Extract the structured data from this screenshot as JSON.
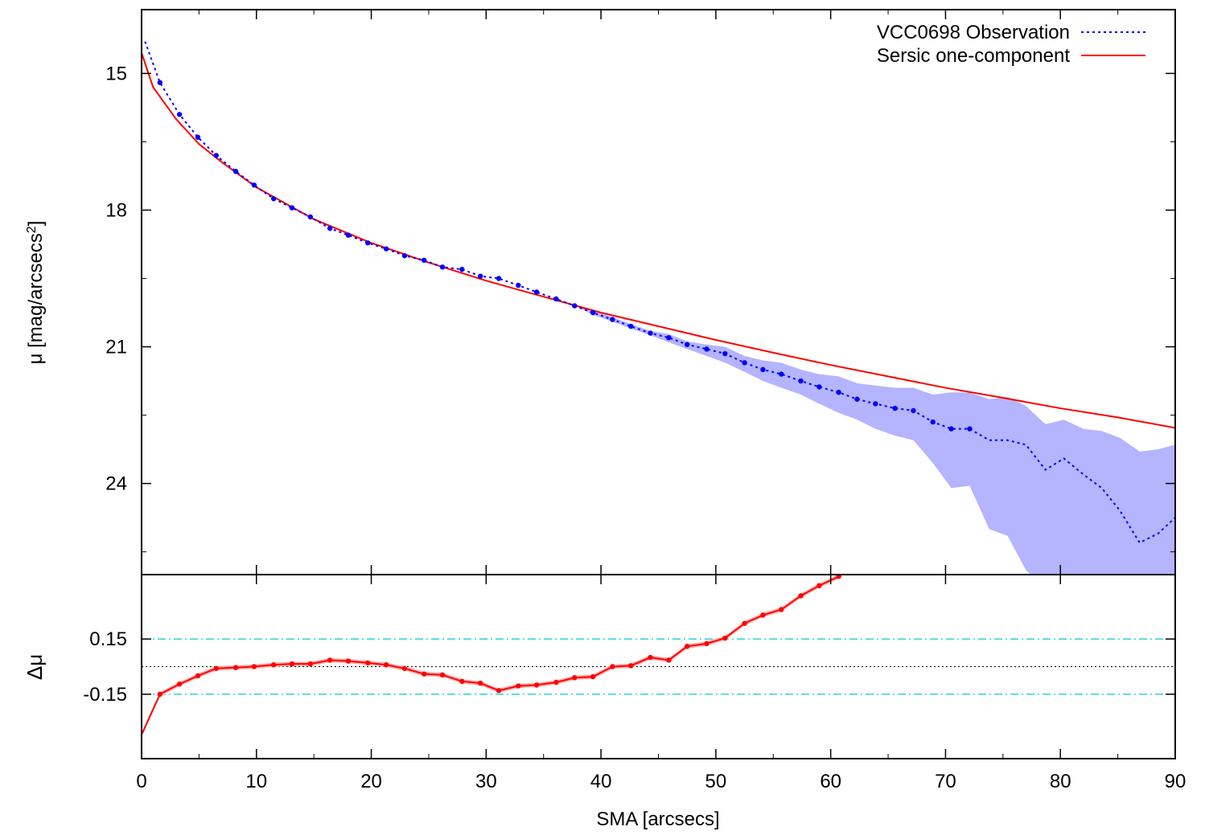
{
  "chart_data": [
    {
      "type": "line",
      "panel": "top",
      "ylabel": "μ [mag/arcsecs²]",
      "ylabel_main": "μ [mag/arcsecs",
      "ylabel_sup": "2",
      "ylabel_end": "]",
      "xlim": [
        0,
        90
      ],
      "ylim": [
        26.0,
        13.6
      ],
      "y_inverted": true,
      "yticks": [
        15,
        18,
        21,
        24
      ],
      "ytick_labels": [
        "15",
        "18",
        "21",
        "24"
      ],
      "grid": false,
      "legend_position": "top-right",
      "legend": [
        {
          "label": "VCC0698 Observation",
          "style": "blue-dotted"
        },
        {
          "label": "Sersic one-component",
          "style": "red-solid"
        }
      ],
      "series": [
        {
          "name": "VCC0698 Observation",
          "color": "#0000ff",
          "x": [
            0.3,
            1.6,
            3.3,
            4.9,
            6.5,
            8.2,
            9.8,
            11.5,
            13.1,
            14.7,
            16.4,
            18.0,
            19.7,
            21.3,
            22.9,
            24.6,
            26.2,
            27.9,
            29.5,
            31.1,
            32.8,
            34.4,
            36.1,
            37.7,
            39.3,
            41.0,
            42.6,
            44.3,
            45.9,
            47.5,
            49.2,
            50.8,
            52.5,
            54.1,
            55.7,
            57.4,
            59.0,
            60.7,
            62.3,
            63.9,
            65.6,
            67.2,
            68.9,
            70.5,
            72.1,
            73.8,
            75.4,
            77.0,
            78.7,
            80.3,
            82.0,
            83.6,
            85.2,
            86.9,
            88.5,
            90.0
          ],
          "y": [
            14.3,
            15.2,
            15.9,
            16.4,
            16.8,
            17.15,
            17.45,
            17.75,
            17.95,
            18.15,
            18.4,
            18.55,
            18.72,
            18.85,
            19.0,
            19.1,
            19.25,
            19.3,
            19.45,
            19.5,
            19.65,
            19.8,
            19.95,
            20.1,
            20.25,
            20.4,
            20.55,
            20.7,
            20.8,
            20.95,
            21.05,
            21.15,
            21.35,
            21.5,
            21.6,
            21.75,
            21.88,
            22.0,
            22.15,
            22.25,
            22.35,
            22.4,
            22.65,
            22.8,
            22.8,
            23.05,
            23.05,
            23.15,
            23.7,
            23.45,
            23.8,
            24.1,
            24.6,
            25.3,
            25.1,
            24.75
          ],
          "band_lower": [
            14.3,
            15.2,
            15.9,
            16.4,
            16.8,
            17.15,
            17.45,
            17.75,
            17.95,
            18.15,
            18.4,
            18.55,
            18.72,
            18.85,
            19.0,
            19.1,
            19.25,
            19.3,
            19.45,
            19.5,
            19.65,
            19.8,
            19.95,
            20.1,
            20.3,
            20.45,
            20.6,
            20.75,
            20.9,
            21.05,
            21.2,
            21.35,
            21.55,
            21.75,
            21.9,
            22.05,
            22.25,
            22.45,
            22.6,
            22.8,
            22.95,
            23.05,
            23.55,
            24.1,
            24.05,
            25.0,
            25.15,
            25.9,
            26.3,
            26.3,
            26.3,
            26.3,
            26.3,
            26.3,
            26.3,
            26.3
          ],
          "band_upper": [
            14.3,
            15.2,
            15.9,
            16.4,
            16.8,
            17.15,
            17.45,
            17.75,
            17.95,
            18.15,
            18.4,
            18.55,
            18.72,
            18.85,
            19.0,
            19.1,
            19.25,
            19.3,
            19.45,
            19.5,
            19.65,
            19.8,
            19.95,
            20.1,
            20.2,
            20.35,
            20.5,
            20.65,
            20.72,
            20.88,
            20.95,
            21.0,
            21.2,
            21.3,
            21.35,
            21.5,
            21.6,
            21.65,
            21.8,
            21.85,
            21.9,
            21.9,
            22.05,
            22.0,
            22.0,
            22.15,
            22.1,
            22.3,
            22.7,
            22.6,
            22.8,
            22.85,
            23.0,
            23.3,
            23.25,
            23.15
          ]
        },
        {
          "name": "Sersic one-component",
          "color": "#ff0000",
          "x": [
            0,
            1,
            3,
            5,
            7,
            10,
            15,
            20,
            25,
            30,
            35,
            40,
            45,
            50,
            55,
            60,
            65,
            70,
            75,
            80,
            85,
            90
          ],
          "y": [
            14.55,
            15.3,
            16.0,
            16.55,
            16.95,
            17.5,
            18.2,
            18.72,
            19.15,
            19.55,
            19.9,
            20.25,
            20.55,
            20.85,
            21.13,
            21.4,
            21.65,
            21.9,
            22.12,
            22.35,
            22.55,
            22.78
          ]
        }
      ]
    },
    {
      "type": "line",
      "panel": "bottom",
      "xlabel": "SMA [arcsecs]",
      "ylabel": "Δμ",
      "xlim": [
        0,
        90
      ],
      "ylim": [
        -0.5,
        0.5
      ],
      "xticks": [
        0,
        10,
        20,
        30,
        40,
        50,
        60,
        70,
        80,
        90
      ],
      "xtick_labels": [
        "0",
        "10",
        "20",
        "30",
        "40",
        "50",
        "60",
        "70",
        "80",
        "90"
      ],
      "yticks": [
        0.15,
        -0.15
      ],
      "ytick_labels": [
        "0.15",
        "-0.15"
      ],
      "reference_lines": [
        {
          "y": 0.15,
          "color": "#00cccc",
          "style": "dash-dot"
        },
        {
          "y": -0.15,
          "color": "#00cccc",
          "style": "dash-dot"
        },
        {
          "y": 0.0,
          "color": "#000000",
          "style": "dotted"
        }
      ],
      "series": [
        {
          "name": "residual",
          "color": "#ff0000",
          "x": [
            0.0,
            1.6,
            3.3,
            4.9,
            6.5,
            8.2,
            9.8,
            11.5,
            13.1,
            14.7,
            16.4,
            18.0,
            19.7,
            21.3,
            22.9,
            24.6,
            26.2,
            27.9,
            29.5,
            31.1,
            32.8,
            34.4,
            36.1,
            37.7,
            39.3,
            41.0,
            42.6,
            44.3,
            45.9,
            47.5,
            49.2,
            50.8,
            52.5,
            54.1,
            55.7,
            57.4,
            59.0,
            60.7
          ],
          "y": [
            -0.37,
            -0.15,
            -0.095,
            -0.05,
            -0.01,
            -0.005,
            0.0,
            0.01,
            0.015,
            0.015,
            0.035,
            0.03,
            0.02,
            0.01,
            -0.01,
            -0.04,
            -0.045,
            -0.08,
            -0.09,
            -0.13,
            -0.105,
            -0.1,
            -0.085,
            -0.06,
            -0.055,
            0.0,
            0.005,
            0.05,
            0.035,
            0.11,
            0.125,
            0.155,
            0.235,
            0.28,
            0.31,
            0.385,
            0.44,
            0.49
          ]
        }
      ]
    }
  ]
}
